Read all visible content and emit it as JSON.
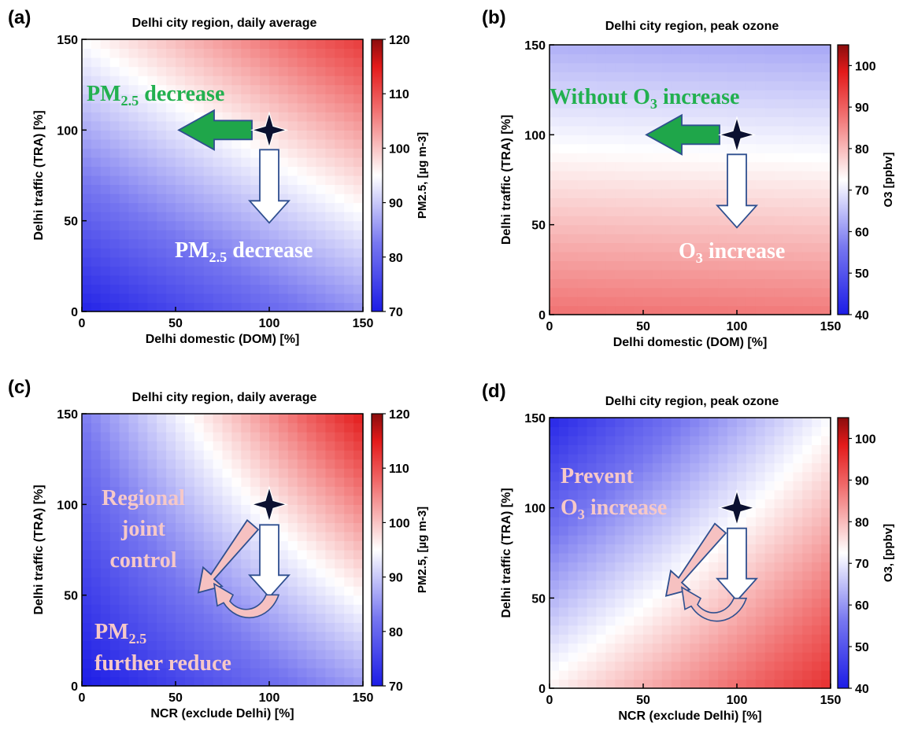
{
  "chart_data": [
    {
      "id": "a",
      "type": "heatmap",
      "panel_label": "(a)",
      "title": "Delhi city region, daily average",
      "xlabel": "Delhi domestic (DOM)  [%]",
      "ylabel": "Delhi traffic (TRA) [%]",
      "xlim": [
        0,
        150
      ],
      "ylim": [
        0,
        150
      ],
      "xticks": [
        "0",
        "50",
        "100",
        "150"
      ],
      "yticks": [
        "0",
        "50",
        "100",
        "150"
      ],
      "colorbar": {
        "label": "PM2.5, [µg m-3]",
        "range": [
          70,
          120
        ],
        "ticks": [
          "70",
          "80",
          "90",
          "100",
          "110",
          "120"
        ]
      },
      "corner_values": {
        "x0_y0": 71,
        "x150_y0": 85,
        "x0_y150": 95,
        "x150_y150": 112
      },
      "marker": {
        "x": 100,
        "y": 100
      },
      "annotations": [
        {
          "text": "PM",
          "sub": "2.5",
          "rest": " decrease",
          "color": "#22b04f"
        },
        {
          "text": "PM",
          "sub": "2.5",
          "rest": " decrease",
          "color": "#ffffff"
        }
      ]
    },
    {
      "id": "b",
      "type": "heatmap",
      "panel_label": "(b)",
      "title": "Delhi city region, peak ozone",
      "xlabel": "Delhi domestic (DOM)  [%]",
      "ylabel": "Delhi traffic (TRA) [%]",
      "xlim": [
        0,
        150
      ],
      "ylim": [
        0,
        150
      ],
      "xticks": [
        "0",
        "50",
        "100",
        "150"
      ],
      "yticks": [
        "0",
        "50",
        "100",
        "150"
      ],
      "colorbar": {
        "label": "O3 [ppbv]",
        "range": [
          40,
          105
        ],
        "ticks": [
          "40",
          "50",
          "60",
          "70",
          "80",
          "90",
          "100"
        ]
      },
      "corner_values": {
        "x0_y0": 88,
        "x150_y0": 87,
        "x0_y150": 63,
        "x150_y150": 62
      },
      "marker": {
        "x": 100,
        "y": 100
      },
      "annotations": [
        {
          "text": "Without O",
          "sub": "3",
          "rest": " increase",
          "color": "#22b04f"
        },
        {
          "text": "O",
          "sub": "3",
          "rest": " increase",
          "color": "#ffffff"
        }
      ]
    },
    {
      "id": "c",
      "type": "heatmap",
      "panel_label": "(c)",
      "title": "Delhi city region, daily average",
      "xlabel": "NCR (exclude Delhi)  [%]",
      "ylabel": "Delhi traffic (TRA) [%]",
      "xlim": [
        0,
        150
      ],
      "ylim": [
        0,
        150
      ],
      "xticks": [
        "0",
        "50",
        "100",
        "150"
      ],
      "yticks": [
        "0",
        "50",
        "100",
        "150"
      ],
      "colorbar": {
        "label": "PM2.5, [µg m-3]",
        "range": [
          70,
          120
        ],
        "ticks": [
          "70",
          "80",
          "90",
          "100",
          "110",
          "120"
        ]
      },
      "corner_values": {
        "x0_y0": 70,
        "x150_y0": 86,
        "x0_y150": 83,
        "x150_y150": 115
      },
      "marker": {
        "x": 100,
        "y": 100
      },
      "annotations": [
        {
          "text": "Regional",
          "color": "#f6c8c8"
        },
        {
          "text": "joint",
          "color": "#f6c8c8"
        },
        {
          "text": "control",
          "color": "#f6c8c8"
        },
        {
          "text": "PM",
          "sub": "2.5",
          "rest": "",
          "color": "#f6c8c8"
        },
        {
          "text": "further reduce",
          "color": "#f6c8c8"
        }
      ]
    },
    {
      "id": "d",
      "type": "heatmap",
      "panel_label": "(d)",
      "title": "Delhi city region, peak ozone",
      "xlabel": "NCR (exclude Delhi) [%]",
      "ylabel": "Delhi traffic (TRA) [%]",
      "xlim": [
        0,
        150
      ],
      "ylim": [
        0,
        150
      ],
      "xticks": [
        "0",
        "50",
        "100",
        "150"
      ],
      "yticks": [
        "0",
        "50",
        "100",
        "150"
      ],
      "colorbar": {
        "label": "O3, [ppbv]",
        "range": [
          40,
          105
        ],
        "ticks": [
          "40",
          "50",
          "60",
          "70",
          "80",
          "90",
          "100"
        ]
      },
      "corner_values": {
        "x0_y0": 74,
        "x150_y0": 96,
        "x0_y150": 42,
        "x150_y150": 72
      },
      "marker": {
        "x": 100,
        "y": 100
      },
      "annotations": [
        {
          "text": "Prevent",
          "color": "#f6c8c8"
        },
        {
          "text": "O",
          "sub": "3",
          "rest": " increase",
          "color": "#f6c8c8"
        }
      ]
    }
  ]
}
